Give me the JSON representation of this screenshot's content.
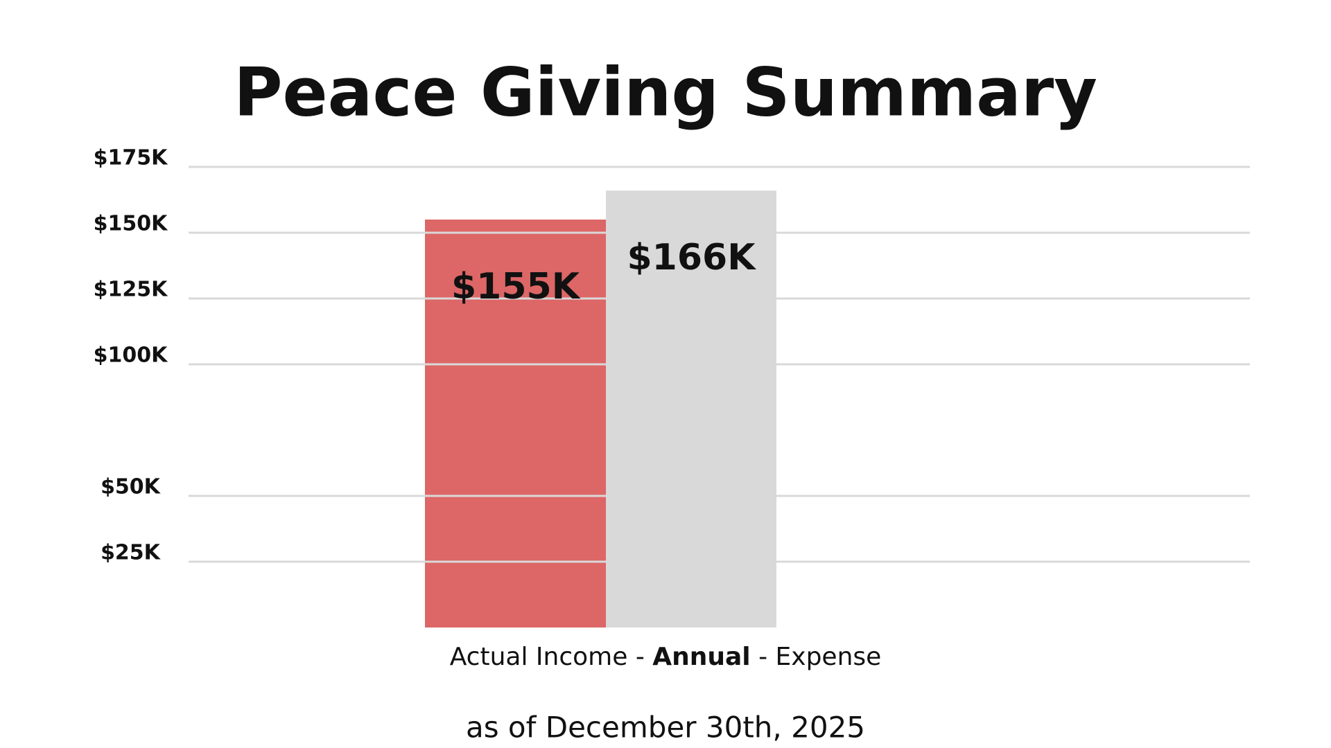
{
  "chart_data": {
    "type": "bar",
    "title": "Peace Giving Summary",
    "values": [
      155000,
      166000
    ],
    "value_labels": [
      "$155K",
      "$166K"
    ],
    "colors": [
      "#dd6666",
      "#d9d9d9"
    ],
    "x_label": [
      "Actual Income - ",
      "Annual",
      " - Expense"
    ],
    "footnote": "as of December 30th, 2025",
    "ylim": [
      0,
      175000
    ],
    "yticks": [
      {
        "value": 25000,
        "label": "$25K"
      },
      {
        "value": 50000,
        "label": "$50K"
      },
      {
        "value": 100000,
        "label": "$100K"
      },
      {
        "value": 125000,
        "label": "$125K"
      },
      {
        "value": 150000,
        "label": "$150K"
      },
      {
        "value": 175000,
        "label": "$175K"
      }
    ],
    "grid": true
  }
}
